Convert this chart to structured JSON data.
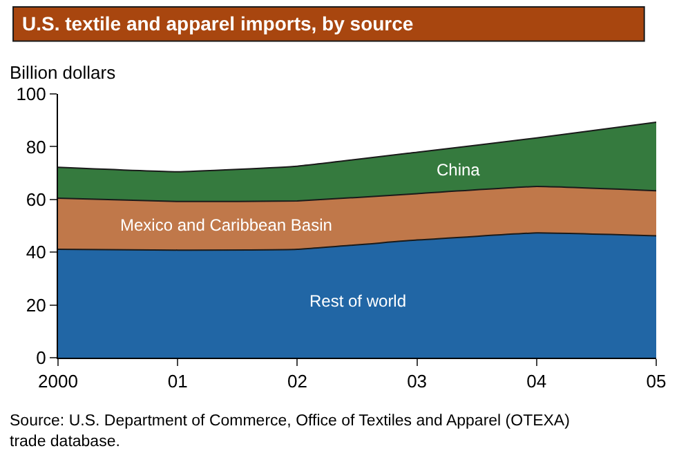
{
  "chart_data": {
    "type": "area",
    "title": "U.S. textile and apparel imports, by source",
    "ylabel": "Billion dollars",
    "x": [
      2000,
      2001,
      2002,
      2003,
      2004,
      2005
    ],
    "xlim": [
      2000,
      2005
    ],
    "xticks": [
      2000,
      {
        "value": 2001,
        "label": "01"
      },
      {
        "value": 2002,
        "label": "02"
      },
      {
        "value": 2003,
        "label": "03"
      },
      {
        "value": 2004,
        "label": "04"
      },
      {
        "value": 2005,
        "label": "05"
      }
    ],
    "ylim": [
      0,
      100
    ],
    "yticks": [
      0,
      20,
      40,
      60,
      80,
      100
    ],
    "stacked": true,
    "legend": false,
    "series": [
      {
        "name": "Rest of world",
        "color": "#2166a5",
        "values": [
          41.1,
          40.8,
          41.1,
          44.6,
          47.3,
          46.2
        ]
      },
      {
        "name": "Mexico and Caribbean Basin",
        "color": "#c0784a",
        "values": [
          19.4,
          18.4,
          18.3,
          17.6,
          17.6,
          17.1
        ]
      },
      {
        "name": "China",
        "color": "#357a3e",
        "values": [
          11.7,
          11.3,
          13.2,
          15.7,
          18.4,
          26.0
        ]
      }
    ],
    "annotations": [
      "Source: U.S. Department of Commerce, Office of Textiles and Apparel (OTEXA)\ntrade database."
    ]
  }
}
